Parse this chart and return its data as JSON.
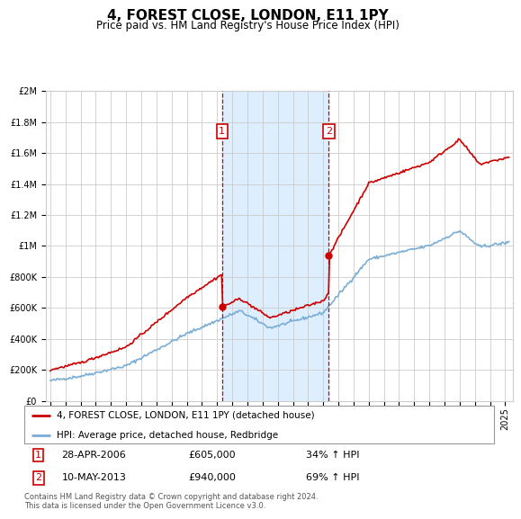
{
  "title": "4, FOREST CLOSE, LONDON, E11 1PY",
  "subtitle": "Price paid vs. HM Land Registry's House Price Index (HPI)",
  "hpi_label": "HPI: Average price, detached house, Redbridge",
  "price_label": "4, FOREST CLOSE, LONDON, E11 1PY (detached house)",
  "footnote": "Contains HM Land Registry data © Crown copyright and database right 2024.\nThis data is licensed under the Open Government Licence v3.0.",
  "sale1_date": "28-APR-2006",
  "sale1_price": 605000,
  "sale1_hpi": "34% ↑ HPI",
  "sale2_date": "10-MAY-2013",
  "sale2_price": 940000,
  "sale2_hpi": "69% ↑ HPI",
  "ylim": [
    0,
    2000000
  ],
  "yticks": [
    0,
    200000,
    400000,
    600000,
    800000,
    1000000,
    1200000,
    1400000,
    1600000,
    1800000,
    2000000
  ],
  "xlim_start": 1994.7,
  "xlim_end": 2025.5,
  "sale1_x": 2006.33,
  "sale2_x": 2013.37,
  "hpi_color": "#7aaed6",
  "price_color": "#cc0000",
  "vline_color": "#cc0000",
  "shade_color": "#ddeeff",
  "grid_color": "#cccccc",
  "background_color": "#ffffff",
  "title_fontsize": 11,
  "subtitle_fontsize": 8.5,
  "tick_fontsize": 7,
  "legend_fontsize": 7.5,
  "badge_fontsize": 8
}
